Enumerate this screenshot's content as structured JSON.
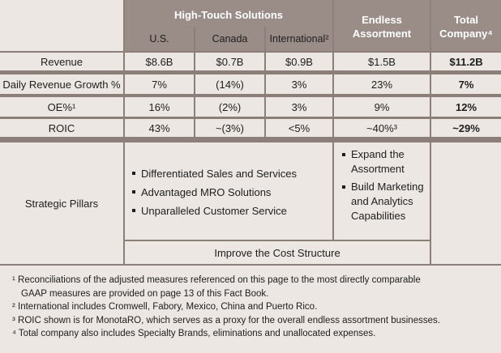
{
  "header": {
    "high_touch": "High-Touch Solutions",
    "us": "U.S.",
    "canada": "Canada",
    "international": "International²",
    "endless": "Endless Assortment",
    "total": "Total Company⁴"
  },
  "rows": [
    {
      "label": "Revenue",
      "us": "$8.6B",
      "canada": "$0.7B",
      "international": "$0.9B",
      "endless": "$1.5B",
      "total": "$11.2B"
    },
    {
      "label": "Daily Revenue Growth %",
      "us": "7%",
      "canada": "(14%)",
      "international": "3%",
      "endless": "23%",
      "total": "7%"
    },
    {
      "label": "OE%¹",
      "us": "16%",
      "canada": "(2%)",
      "international": "3%",
      "endless": "9%",
      "total": "12%"
    },
    {
      "label": "ROIC",
      "us": "43%",
      "canada": "~(3%)",
      "international": "<5%",
      "endless": "~40%³",
      "total": "~29%"
    }
  ],
  "pillars": {
    "label": "Strategic Pillars",
    "high_touch_items": [
      "Differentiated Sales and Services",
      "Advantaged MRO Solutions",
      "Unparalleled Customer Service"
    ],
    "endless_items": [
      "Expand the Assortment",
      "Build Marketing and Analytics Capabilities"
    ],
    "shared": "Improve the Cost Structure"
  },
  "footnotes": [
    "¹ Reconciliations of the adjusted measures referenced on this page to the most directly comparable",
    "GAAP measures are provided on page 13 of this Fact Book.",
    "² International includes Cromwell, Fabory, Mexico, China and Puerto Rico.",
    "³ ROIC shown is for MonotaRO, which serves as a proxy for the overall endless assortment businesses.",
    "⁴ Total company also includes Specialty Brands, eliminations and unallocated expenses."
  ]
}
